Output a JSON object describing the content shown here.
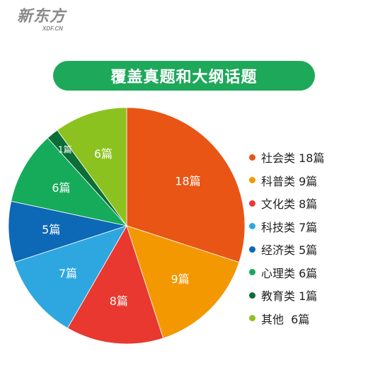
{
  "logo": {
    "main": "新东方",
    "sub": "XDF.CN"
  },
  "title": "覆盖真题和大纲话题",
  "chart_data": {
    "type": "pie",
    "unit_suffix": "篇",
    "start": "top",
    "direction": "clockwise",
    "legend_position": "right",
    "slices": [
      {
        "name": "社会类",
        "value": 18,
        "label": "18篇",
        "legend": "社会类 18篇",
        "color": "#e95515"
      },
      {
        "name": "科普类",
        "value": 9,
        "label": "9篇",
        "legend": "科普类 9篇",
        "color": "#f39800"
      },
      {
        "name": "文化类",
        "value": 8,
        "label": "8篇",
        "legend": "文化类 8篇",
        "color": "#e8382f"
      },
      {
        "name": "科技类",
        "value": 7,
        "label": "7篇",
        "legend": "科技类 7篇",
        "color": "#2ea7e0"
      },
      {
        "name": "经济类",
        "value": 5,
        "label": "5篇",
        "legend": "经济类 5篇",
        "color": "#0d68b5"
      },
      {
        "name": "心理类",
        "value": 6,
        "label": "6篇",
        "legend": "心理类 6篇",
        "color": "#16ab5b"
      },
      {
        "name": "教育类",
        "value": 1,
        "label": "1篇",
        "legend": "教育类 1篇",
        "color": "#0b6e38"
      },
      {
        "name": "其他",
        "value": 6,
        "label": "6篇",
        "legend": "其他  6篇",
        "color": "#8cc21f"
      }
    ]
  }
}
